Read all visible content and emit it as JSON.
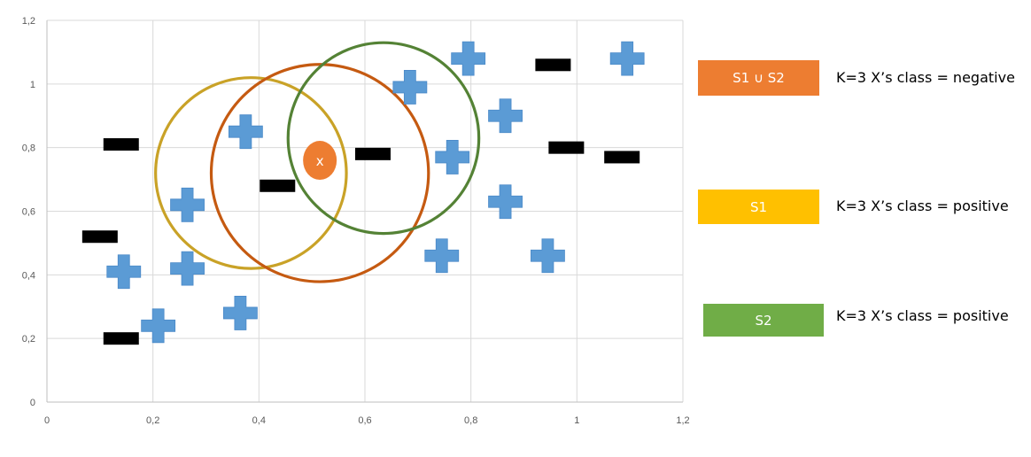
{
  "chart_data": {
    "type": "scatter",
    "title": "",
    "xlabel": "",
    "ylabel": "",
    "xlim": [
      0,
      1.2
    ],
    "ylim": [
      0,
      1.2
    ],
    "x_ticks": [
      "0",
      "0,2",
      "0,4",
      "0,6",
      "0,8",
      "1",
      "1,2"
    ],
    "y_ticks": [
      "0",
      "0,2",
      "0,4",
      "0,6",
      "0,8",
      "1",
      "1,2"
    ],
    "grid": true,
    "series": [
      {
        "marker": "plus",
        "color": "#5B9BD5",
        "points": [
          {
            "x": 0.145,
            "y": 0.41
          },
          {
            "x": 0.21,
            "y": 0.24
          },
          {
            "x": 0.265,
            "y": 0.62
          },
          {
            "x": 0.265,
            "y": 0.42
          },
          {
            "x": 0.365,
            "y": 0.28
          },
          {
            "x": 0.375,
            "y": 0.85
          },
          {
            "x": 0.685,
            "y": 0.99
          },
          {
            "x": 0.745,
            "y": 0.46
          },
          {
            "x": 0.765,
            "y": 0.77
          },
          {
            "x": 0.795,
            "y": 1.08
          },
          {
            "x": 0.865,
            "y": 0.9
          },
          {
            "x": 0.865,
            "y": 0.63
          },
          {
            "x": 0.945,
            "y": 0.46
          },
          {
            "x": 1.095,
            "y": 1.08
          }
        ]
      },
      {
        "marker": "minus",
        "color": "#000000",
        "points": [
          {
            "x": 0.1,
            "y": 0.52
          },
          {
            "x": 0.14,
            "y": 0.81
          },
          {
            "x": 0.14,
            "y": 0.2
          },
          {
            "x": 0.435,
            "y": 0.68
          },
          {
            "x": 0.615,
            "y": 0.78
          },
          {
            "x": 0.955,
            "y": 1.06
          },
          {
            "x": 0.98,
            "y": 0.8
          },
          {
            "x": 1.085,
            "y": 0.77
          }
        ]
      }
    ],
    "query_point": {
      "x": 0.515,
      "y": 0.76,
      "label": "x",
      "color": "#ED7D31"
    },
    "circles": [
      {
        "cx": 0.385,
        "cy": 0.72,
        "r": 0.18,
        "color": "#C9A227"
      },
      {
        "cx": 0.515,
        "cy": 0.72,
        "r": 0.205,
        "color": "#C55A11"
      },
      {
        "cx": 0.635,
        "cy": 0.83,
        "r": 0.18,
        "color": "#548235"
      }
    ]
  },
  "legend": [
    {
      "label": "S1 ∪ S2",
      "color": "#ED7D31",
      "description": "K=3  X’s class = negative"
    },
    {
      "label": "S1",
      "color": "#FFC000",
      "description": "K=3  X’s class = positive"
    },
    {
      "label": "S2",
      "color": "#70AD47",
      "description": "K=3  X’s class = positive"
    }
  ]
}
